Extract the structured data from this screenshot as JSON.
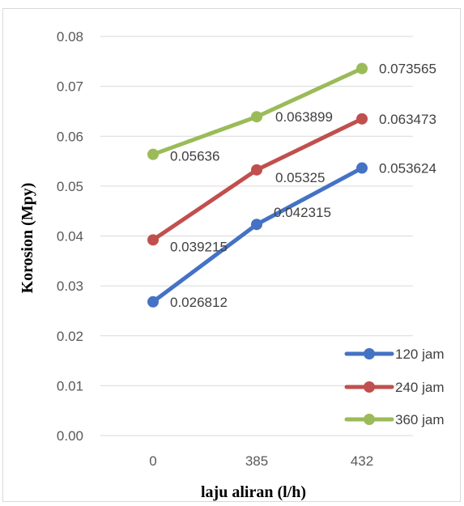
{
  "chart_data": {
    "type": "line",
    "title": "",
    "xlabel": "laju aliran (l/h)",
    "ylabel": "Korosion (Mpy)",
    "categories": [
      "0",
      "385",
      "432"
    ],
    "ylim": [
      0,
      0.08
    ],
    "yticks": [
      "0.00",
      "0.01",
      "0.02",
      "0.03",
      "0.04",
      "0.05",
      "0.06",
      "0.07",
      "0.08"
    ],
    "grid": true,
    "legend_position": "bottom-right",
    "series": [
      {
        "name": "120 jam",
        "color": "#4472c4",
        "values": [
          0.026812,
          0.042315,
          0.053624
        ],
        "labels": [
          "0.026812",
          "0.042315",
          "0.053624"
        ]
      },
      {
        "name": "240 jam",
        "color": "#c0504d",
        "values": [
          0.039215,
          0.05325,
          0.063473
        ],
        "labels": [
          "0.039215",
          "0.05325",
          "0.063473"
        ]
      },
      {
        "name": "360 jam",
        "color": "#9bbb59",
        "values": [
          0.05636,
          0.063899,
          0.073565
        ],
        "labels": [
          "0.05636",
          "0.063899",
          "0.073565"
        ]
      }
    ]
  }
}
